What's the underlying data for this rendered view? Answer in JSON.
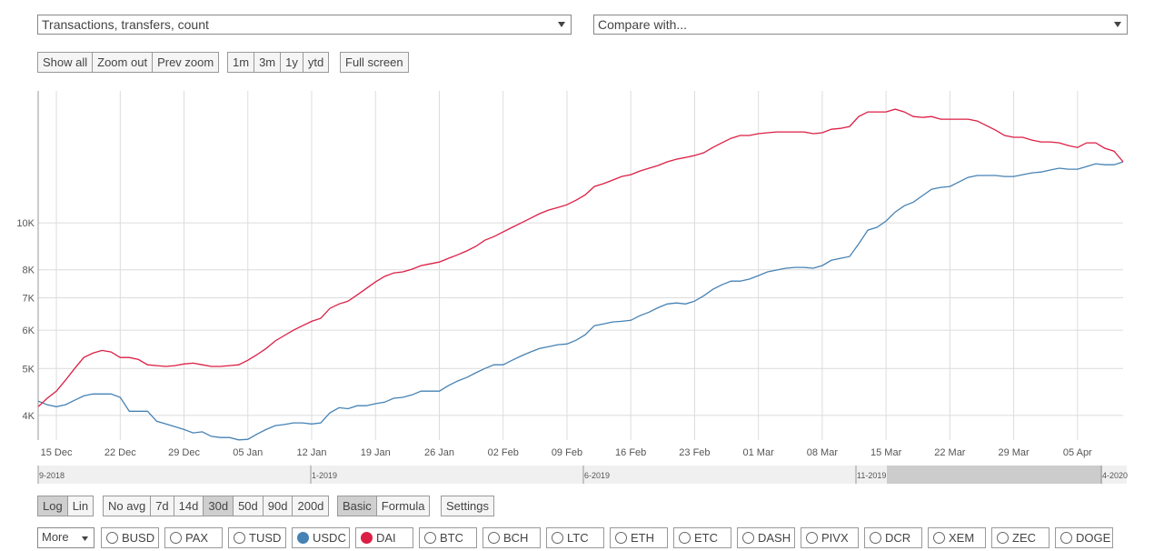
{
  "selectors": {
    "metric": "Transactions, transfers, count",
    "compare": "Compare with..."
  },
  "zoom_buttons": [
    "Show all",
    "Zoom out",
    "Prev zoom"
  ],
  "range_buttons": [
    "1m",
    "3m",
    "1y",
    "ytd"
  ],
  "fullscreen_button": "Full screen",
  "chart_data": {
    "type": "line",
    "log_scale": true,
    "grid": true,
    "categories": [
      null,
      null,
      "15 Dec",
      null,
      null,
      null,
      null,
      null,
      null,
      "22 Dec",
      null,
      null,
      null,
      null,
      null,
      null,
      "29 Dec",
      null,
      null,
      null,
      null,
      null,
      null,
      "05 Jan",
      null,
      null,
      null,
      null,
      null,
      null,
      "12 Jan",
      null,
      null,
      null,
      null,
      null,
      null,
      "19 Jan",
      null,
      null,
      null,
      null,
      null,
      null,
      "26 Jan",
      null,
      null,
      null,
      null,
      null,
      null,
      "02 Feb",
      null,
      null,
      null,
      null,
      null,
      null,
      "09 Feb",
      null,
      null,
      null,
      null,
      null,
      null,
      "16 Feb",
      null,
      null,
      null,
      null,
      null,
      null,
      "23 Feb",
      null,
      null,
      null,
      null,
      null,
      null,
      "01 Mar",
      null,
      null,
      null,
      null,
      null,
      null,
      "08 Mar",
      null,
      null,
      null,
      null,
      null,
      null,
      "15 Mar",
      null,
      null,
      null,
      null,
      null,
      null,
      "22 Mar",
      null,
      null,
      null,
      null,
      null,
      null,
      "29 Mar",
      null,
      null,
      null,
      null,
      null,
      null,
      "05 Apr",
      null,
      null,
      null,
      null,
      null
    ],
    "series": [
      {
        "color": "#4682b4",
        "values": [
          4280,
          4210,
          4170,
          4210,
          4300,
          4390,
          4430,
          4430,
          4430,
          4360,
          4080,
          4080,
          4080,
          3890,
          3840,
          3790,
          3740,
          3680,
          3700,
          3620,
          3600,
          3600,
          3560,
          3570,
          3660,
          3740,
          3810,
          3830,
          3860,
          3860,
          3840,
          3860,
          4050,
          4150,
          4130,
          4190,
          4190,
          4230,
          4260,
          4340,
          4360,
          4410,
          4490,
          4490,
          4490,
          4610,
          4710,
          4790,
          4900,
          5000,
          5090,
          5090,
          5200,
          5310,
          5410,
          5500,
          5550,
          5600,
          5620,
          5720,
          5870,
          6130,
          6180,
          6240,
          6260,
          6290,
          6430,
          6540,
          6680,
          6800,
          6830,
          6800,
          6890,
          7070,
          7290,
          7450,
          7580,
          7580,
          7650,
          7780,
          7920,
          7990,
          8060,
          8090,
          8090,
          8060,
          8160,
          8370,
          8450,
          8520,
          9050,
          9660,
          9790,
          10090,
          10530,
          10850,
          11040,
          11390,
          11740,
          11840,
          11890,
          12150,
          12420,
          12530,
          12530,
          12530,
          12470,
          12470,
          12580,
          12690,
          12740,
          12860,
          12970,
          12910,
          12910,
          13080,
          13250,
          13190,
          13190,
          13370
        ]
      },
      {
        "color": "#dc1e44",
        "values": [
          4170,
          4340,
          4490,
          4730,
          5000,
          5270,
          5380,
          5450,
          5410,
          5270,
          5270,
          5220,
          5090,
          5070,
          5050,
          5070,
          5110,
          5130,
          5090,
          5050,
          5050,
          5070,
          5090,
          5200,
          5340,
          5500,
          5700,
          5850,
          6000,
          6130,
          6260,
          6350,
          6660,
          6800,
          6890,
          7100,
          7320,
          7550,
          7750,
          7880,
          7920,
          8020,
          8160,
          8230,
          8300,
          8450,
          8590,
          8750,
          8940,
          9210,
          9370,
          9580,
          9790,
          10000,
          10220,
          10450,
          10630,
          10760,
          10900,
          11140,
          11430,
          11890,
          12050,
          12260,
          12470,
          12580,
          12800,
          12970,
          13140,
          13370,
          13540,
          13650,
          13780,
          13960,
          14320,
          14640,
          14960,
          15160,
          15160,
          15290,
          15360,
          15420,
          15420,
          15420,
          15420,
          15290,
          15360,
          15610,
          15680,
          15820,
          16590,
          16960,
          16960,
          16960,
          17180,
          16960,
          16590,
          16520,
          16590,
          16380,
          16380,
          16380,
          16380,
          16240,
          15890,
          15550,
          15160,
          15030,
          15030,
          14830,
          14700,
          14700,
          14640,
          14450,
          14320,
          14640,
          14640,
          14260,
          14070,
          13370
        ]
      }
    ],
    "ylim": [
      3557,
      18740
    ],
    "yticks": [
      {
        "value": 4000,
        "label": "4K"
      },
      {
        "value": 5000,
        "label": "5K"
      },
      {
        "value": 6000,
        "label": "6K"
      },
      {
        "value": 7000,
        "label": "7K"
      },
      {
        "value": 8000,
        "label": "8K"
      },
      {
        "value": 10000,
        "label": "10K"
      }
    ]
  },
  "navigator": {
    "labels": [
      "9-2018",
      "1-2019",
      "6-2019",
      "11-2019",
      "4-2020"
    ]
  },
  "scale_buttons": [
    {
      "label": "Log",
      "active": true
    },
    {
      "label": "Lin",
      "active": false
    }
  ],
  "avg_buttons": [
    {
      "label": "No avg",
      "active": false
    },
    {
      "label": "7d",
      "active": false
    },
    {
      "label": "14d",
      "active": false
    },
    {
      "label": "30d",
      "active": true
    },
    {
      "label": "50d",
      "active": false
    },
    {
      "label": "90d",
      "active": false
    },
    {
      "label": "200d",
      "active": false
    }
  ],
  "mode_buttons": [
    {
      "label": "Basic",
      "active": true
    },
    {
      "label": "Formula",
      "active": false
    }
  ],
  "settings_button": "Settings",
  "more_select": "More",
  "coins": [
    {
      "name": "BUSD"
    },
    {
      "name": "PAX"
    },
    {
      "name": "TUSD"
    },
    {
      "name": "USDC",
      "color": "#4682b4"
    },
    {
      "name": "DAI",
      "color": "#dc1e44"
    },
    {
      "name": "BTC"
    },
    {
      "name": "BCH"
    },
    {
      "name": "LTC"
    },
    {
      "name": "ETH"
    },
    {
      "name": "ETC"
    },
    {
      "name": "DASH"
    },
    {
      "name": "PIVX"
    },
    {
      "name": "DCR"
    },
    {
      "name": "XEM"
    },
    {
      "name": "ZEC"
    },
    {
      "name": "DOGE"
    }
  ]
}
